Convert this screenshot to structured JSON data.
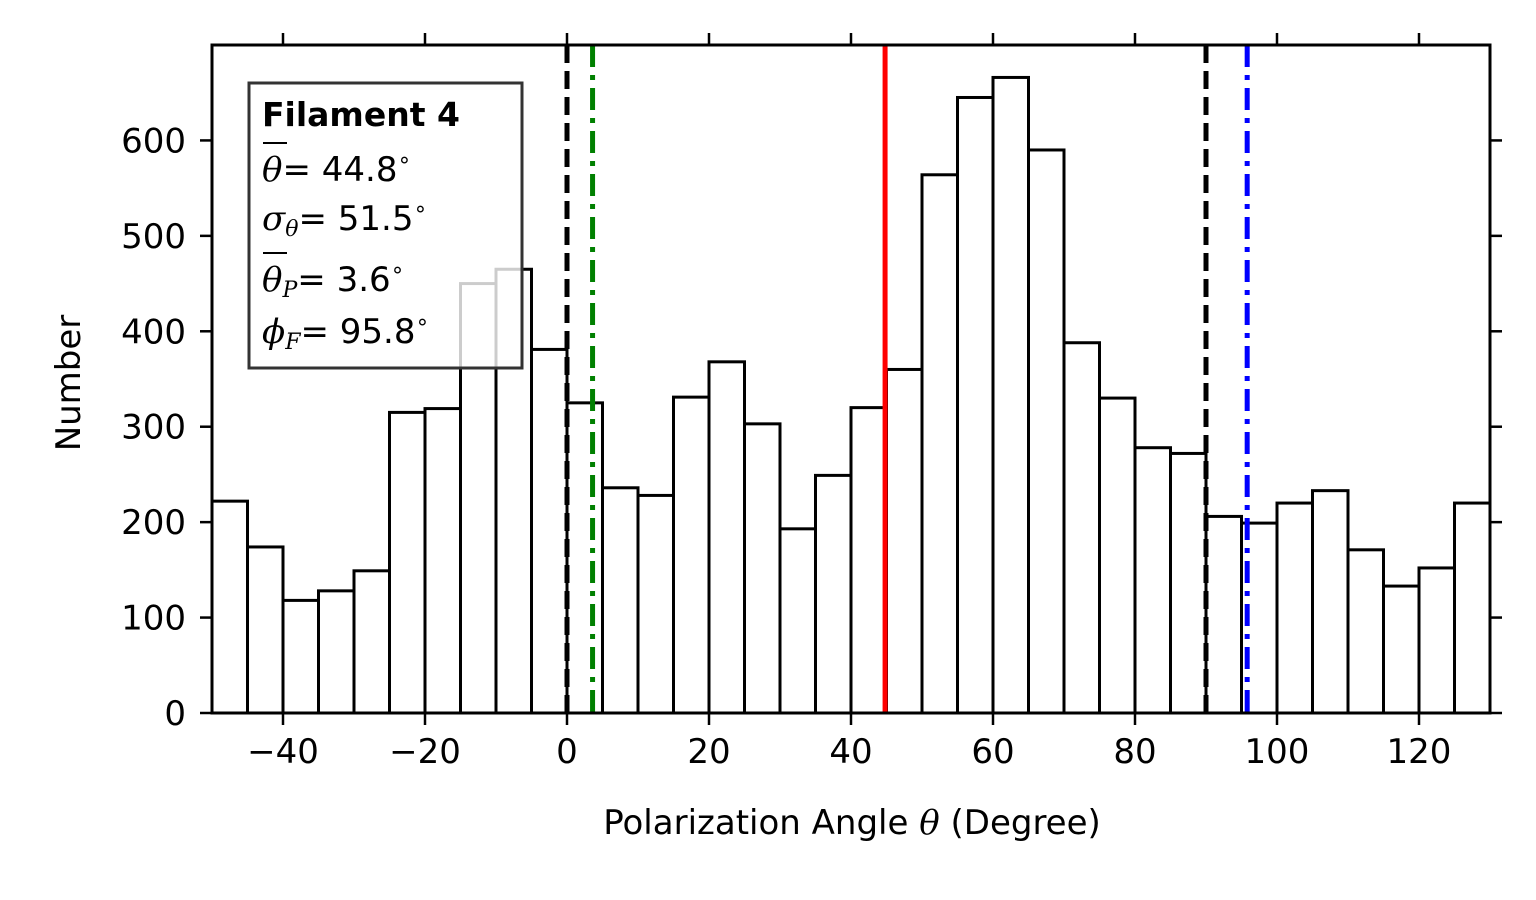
{
  "chart_data": {
    "type": "bar",
    "xlabel_prefix": "Polarization Angle ",
    "xlabel_symbol": "θ",
    "xlabel_suffix": " (Degree)",
    "ylabel": "Number",
    "xlim": [
      -50,
      130
    ],
    "ylim": [
      0,
      700
    ],
    "xticks": [
      -40,
      -20,
      0,
      20,
      40,
      60,
      80,
      100,
      120
    ],
    "xtick_labels": [
      "−40",
      "−20",
      "0",
      "20",
      "40",
      "60",
      "80",
      "100",
      "120"
    ],
    "yticks": [
      0,
      100,
      200,
      300,
      400,
      500,
      600
    ],
    "ytick_labels": [
      "0",
      "100",
      "200",
      "300",
      "400",
      "500",
      "600"
    ],
    "bin_width": 5,
    "bin_starts": [
      -50,
      -45,
      -40,
      -35,
      -30,
      -25,
      -20,
      -15,
      -10,
      -5,
      0,
      5,
      10,
      15,
      20,
      25,
      30,
      35,
      40,
      45,
      50,
      55,
      60,
      65,
      70,
      75,
      80,
      85,
      90,
      95,
      100,
      105,
      110,
      115,
      120,
      125
    ],
    "values": [
      222,
      174,
      118,
      128,
      149,
      315,
      319,
      450,
      465,
      381,
      325,
      236,
      228,
      331,
      368,
      303,
      193,
      249,
      320,
      360,
      564,
      645,
      666,
      590,
      388,
      330,
      278,
      272,
      206,
      199,
      220,
      233,
      171,
      133,
      152,
      220
    ],
    "vlines": [
      {
        "x": 0,
        "color": "#000000",
        "style": "dashed"
      },
      {
        "x": 3.6,
        "color": "#008000",
        "style": "dashdot"
      },
      {
        "x": 44.8,
        "color": "#ff0000",
        "style": "solid"
      },
      {
        "x": 90,
        "color": "#000000",
        "style": "dashed"
      },
      {
        "x": 95.8,
        "color": "#0000ff",
        "style": "dashdot"
      }
    ],
    "legend_placement": "top-left",
    "legend": {
      "title": "Filament 4",
      "theta_mean": "= 44.8",
      "sigma": "= 51.5",
      "theta_p": "= 3.6",
      "phi_f": "= 95.8"
    }
  }
}
